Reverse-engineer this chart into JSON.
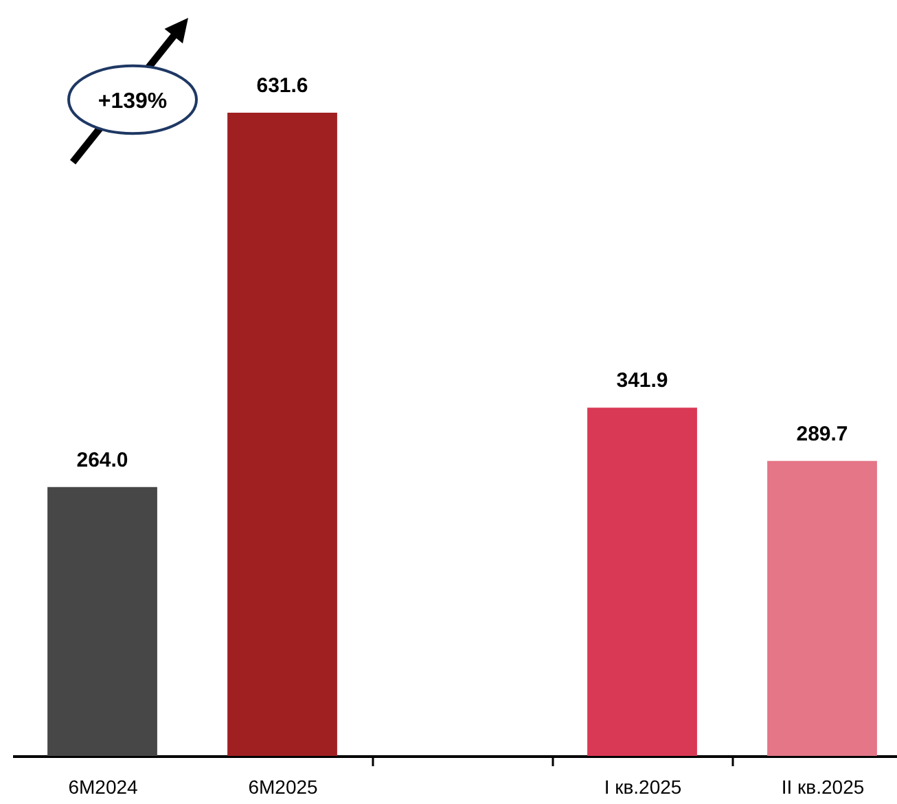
{
  "chart_data": {
    "type": "bar",
    "categories": [
      "6M2024",
      "6M2025",
      null,
      "I кв.2025",
      "II кв.2025"
    ],
    "values": [
      264.0,
      631.6,
      null,
      341.9,
      289.7
    ],
    "colors": [
      "#474747",
      "#a02022",
      null,
      "#d93954",
      "#e47687"
    ],
    "value_labels": [
      "264.0",
      "631.6",
      null,
      "341.9",
      "289.7"
    ],
    "annotations": [
      "+139%"
    ]
  }
}
